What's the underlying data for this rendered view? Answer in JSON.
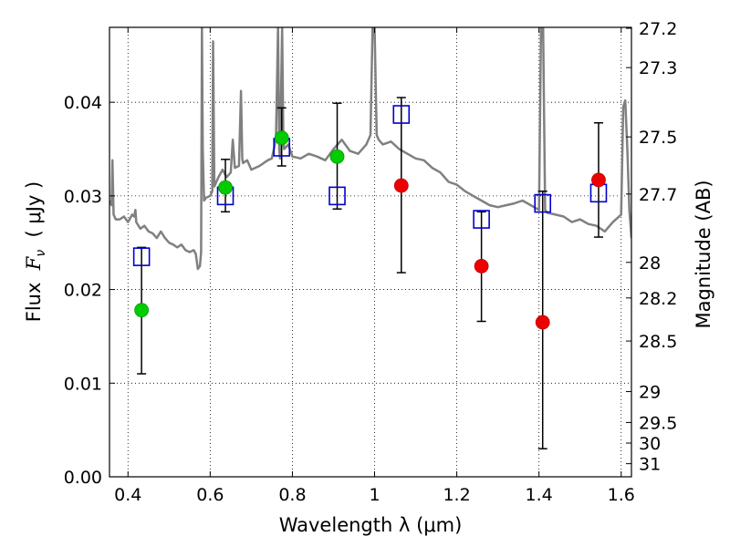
{
  "chart_data": {
    "type": "scatter",
    "xlabel": "Wavelength  λ (μm)",
    "ylabel_parts": {
      "prefix": "Flux  ",
      "symbol": "F",
      "subscript": "ν",
      "suffix": "  ( μJy )"
    },
    "ylabel2": "Magnitude (AB)",
    "xlim": [
      0.355,
      1.625
    ],
    "ylim": [
      0.0,
      0.048
    ],
    "x_ticks": [
      {
        "value": 0.4,
        "label": "0.4"
      },
      {
        "value": 0.6,
        "label": "0.6"
      },
      {
        "value": 0.8,
        "label": "0.8"
      },
      {
        "value": 1.0,
        "label": "1"
      },
      {
        "value": 1.2,
        "label": "1.2"
      },
      {
        "value": 1.4,
        "label": "1.4"
      },
      {
        "value": 1.6,
        "label": "1.6"
      }
    ],
    "y_ticks": [
      {
        "value": 0.0,
        "label": "0.00"
      },
      {
        "value": 0.01,
        "label": "0.01"
      },
      {
        "value": 0.02,
        "label": "0.02"
      },
      {
        "value": 0.03,
        "label": "0.03"
      },
      {
        "value": 0.04,
        "label": "0.04"
      }
    ],
    "mag_ticks": [
      {
        "value": 0.0479,
        "label": "27.2"
      },
      {
        "value": 0.0437,
        "label": "27.3"
      },
      {
        "value": 0.0363,
        "label": "27.5"
      },
      {
        "value": 0.0302,
        "label": "27.7"
      },
      {
        "value": 0.0229,
        "label": "28"
      },
      {
        "value": 0.0191,
        "label": "28.2"
      },
      {
        "value": 0.0145,
        "label": "28.5"
      },
      {
        "value": 0.0091,
        "label": "29"
      },
      {
        "value": 0.0058,
        "label": "29.5"
      },
      {
        "value": 0.0036,
        "label": "30"
      },
      {
        "value": 0.0014,
        "label": "31"
      }
    ],
    "grid": true,
    "series": [
      {
        "kind": "spectrum_line",
        "color": "#808080",
        "x": [
          0.355,
          0.36,
          0.362,
          0.365,
          0.37,
          0.38,
          0.39,
          0.4,
          0.41,
          0.415,
          0.418,
          0.42,
          0.43,
          0.44,
          0.45,
          0.46,
          0.47,
          0.48,
          0.49,
          0.5,
          0.51,
          0.52,
          0.53,
          0.54,
          0.55,
          0.56,
          0.565,
          0.57,
          0.575,
          0.578,
          0.58,
          0.582,
          0.585,
          0.59,
          0.6,
          0.605,
          0.607,
          0.61,
          0.62,
          0.63,
          0.64,
          0.65,
          0.655,
          0.66,
          0.67,
          0.675,
          0.678,
          0.68,
          0.69,
          0.7,
          0.72,
          0.74,
          0.75,
          0.76,
          0.765,
          0.768,
          0.77,
          0.775,
          0.778,
          0.78,
          0.79,
          0.8,
          0.82,
          0.84,
          0.86,
          0.88,
          0.9,
          0.92,
          0.94,
          0.96,
          0.98,
          0.99,
          0.995,
          1.0,
          1.005,
          1.01,
          1.02,
          1.04,
          1.06,
          1.08,
          1.1,
          1.12,
          1.14,
          1.16,
          1.18,
          1.2,
          1.22,
          1.24,
          1.26,
          1.28,
          1.3,
          1.32,
          1.34,
          1.36,
          1.38,
          1.4,
          1.405,
          1.41,
          1.415,
          1.42,
          1.44,
          1.46,
          1.48,
          1.5,
          1.52,
          1.54,
          1.56,
          1.58,
          1.6,
          1.605,
          1.61,
          1.615,
          1.62,
          1.625
        ],
        "y": [
          0.0295,
          0.029,
          0.0338,
          0.028,
          0.0275,
          0.0275,
          0.0278,
          0.0272,
          0.028,
          0.0278,
          0.0285,
          0.0272,
          0.0265,
          0.0268,
          0.0262,
          0.026,
          0.0255,
          0.0262,
          0.0255,
          0.025,
          0.0248,
          0.0245,
          0.0248,
          0.0242,
          0.024,
          0.0242,
          0.0238,
          0.0222,
          0.0225,
          0.024,
          0.048,
          0.035,
          0.0295,
          0.0298,
          0.03,
          0.0305,
          0.0465,
          0.031,
          0.032,
          0.0328,
          0.032,
          0.0325,
          0.036,
          0.033,
          0.0332,
          0.0412,
          0.034,
          0.0335,
          0.0338,
          0.0328,
          0.0332,
          0.0338,
          0.034,
          0.036,
          0.048,
          0.035,
          0.034,
          0.048,
          0.036,
          0.035,
          0.0355,
          0.0342,
          0.034,
          0.0345,
          0.0342,
          0.0338,
          0.035,
          0.036,
          0.0348,
          0.0345,
          0.0355,
          0.0365,
          0.048,
          0.048,
          0.0365,
          0.036,
          0.0355,
          0.0358,
          0.035,
          0.0345,
          0.034,
          0.0338,
          0.033,
          0.0325,
          0.0315,
          0.0312,
          0.0305,
          0.03,
          0.0295,
          0.029,
          0.0288,
          0.029,
          0.0292,
          0.0295,
          0.029,
          0.0285,
          0.048,
          0.048,
          0.0285,
          0.0282,
          0.028,
          0.0278,
          0.0272,
          0.0275,
          0.027,
          0.0268,
          0.0262,
          0.0272,
          0.028,
          0.0395,
          0.0402,
          0.035,
          0.0285,
          0.0255
        ]
      },
      {
        "kind": "model_squares",
        "color": "#0000cc",
        "x": [
          0.433,
          0.637,
          0.774,
          0.909,
          1.065,
          1.26,
          1.409,
          1.545
        ],
        "y": [
          0.0235,
          0.03,
          0.0352,
          0.03,
          0.0387,
          0.0275,
          0.0292,
          0.0303
        ]
      },
      {
        "kind": "detections",
        "color": "#00cc00",
        "x": [
          0.433,
          0.637,
          0.774,
          0.909
        ],
        "y": [
          0.0178,
          0.0309,
          0.0362,
          0.0342
        ]
      },
      {
        "kind": "upper_limits",
        "color": "#ee0000",
        "x": [
          1.065,
          1.26,
          1.409,
          1.545
        ],
        "y": [
          0.0311,
          0.0225,
          0.0165,
          0.0317
        ]
      }
    ],
    "error_bars": [
      {
        "x": 0.433,
        "lo": 0.011,
        "hi": 0.0245
      },
      {
        "x": 0.637,
        "lo": 0.0283,
        "hi": 0.0339
      },
      {
        "x": 0.774,
        "lo": 0.0332,
        "hi": 0.0394
      },
      {
        "x": 0.909,
        "lo": 0.0286,
        "hi": 0.0399
      },
      {
        "x": 1.065,
        "lo": 0.0218,
        "hi": 0.0405
      },
      {
        "x": 1.26,
        "lo": 0.0166,
        "hi": 0.0283
      },
      {
        "x": 1.409,
        "lo": 0.003,
        "hi": 0.0305
      },
      {
        "x": 1.545,
        "lo": 0.0256,
        "hi": 0.0378
      }
    ]
  }
}
